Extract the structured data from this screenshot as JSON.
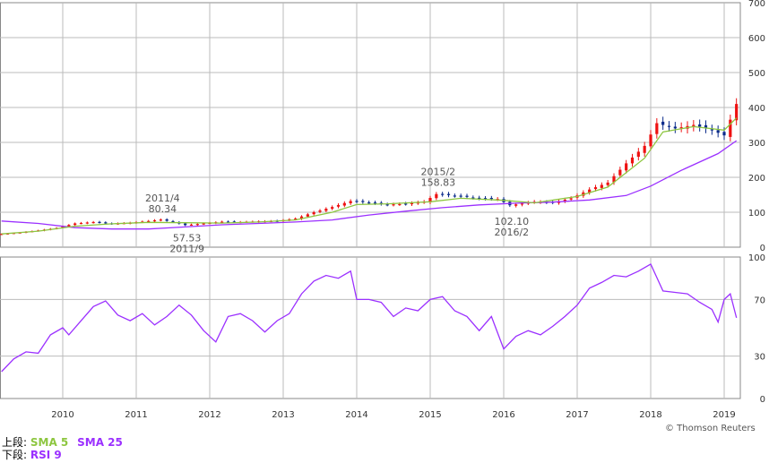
{
  "chart_data": [
    {
      "type": "candlestick",
      "panel": "price",
      "ylim": [
        0,
        700
      ],
      "yticks": [
        "0",
        "100",
        "200",
        "300",
        "400",
        "500",
        "600",
        "700"
      ],
      "x_years": [
        "2010",
        "2011",
        "2012",
        "2013",
        "2014",
        "2015",
        "2016",
        "2017",
        "2018",
        "2019"
      ],
      "close_series": [
        [
          "2009-03",
          38
        ],
        [
          "2009-06",
          42
        ],
        [
          "2009-09",
          48
        ],
        [
          "2009-12",
          55
        ],
        [
          "2010-03",
          68
        ],
        [
          "2010-06",
          72
        ],
        [
          "2010-09",
          67
        ],
        [
          "2010-12",
          70
        ],
        [
          "2011-03",
          75
        ],
        [
          "2011-05",
          79
        ],
        [
          "2011-07",
          72
        ],
        [
          "2011-09",
          63
        ],
        [
          "2011-12",
          68
        ],
        [
          "2012-03",
          73
        ],
        [
          "2012-06",
          72
        ],
        [
          "2012-09",
          74
        ],
        [
          "2012-12",
          75
        ],
        [
          "2013-03",
          82
        ],
        [
          "2013-06",
          100
        ],
        [
          "2013-09",
          115
        ],
        [
          "2013-12",
          132
        ],
        [
          "2014-03",
          128
        ],
        [
          "2014-06",
          122
        ],
        [
          "2014-09",
          124
        ],
        [
          "2014-12",
          130
        ],
        [
          "2015-02",
          152
        ],
        [
          "2015-06",
          146
        ],
        [
          "2015-09",
          140
        ],
        [
          "2015-12",
          138
        ],
        [
          "2016-02",
          120
        ],
        [
          "2016-06",
          130
        ],
        [
          "2016-09",
          128
        ],
        [
          "2016-12",
          140
        ],
        [
          "2017-03",
          165
        ],
        [
          "2017-06",
          185
        ],
        [
          "2017-09",
          240
        ],
        [
          "2017-12",
          290
        ],
        [
          "2018-02",
          355
        ],
        [
          "2018-05",
          340
        ],
        [
          "2018-08",
          350
        ],
        [
          "2018-11",
          335
        ],
        [
          "2019-01",
          320
        ],
        [
          "2019-03",
          410
        ]
      ],
      "sma5": [
        [
          "2009-03",
          38
        ],
        [
          "2009-09",
          46
        ],
        [
          "2010-03",
          60
        ],
        [
          "2010-09",
          67
        ],
        [
          "2011-03",
          71
        ],
        [
          "2011-09",
          70
        ],
        [
          "2012-03",
          69
        ],
        [
          "2012-09",
          72
        ],
        [
          "2013-03",
          78
        ],
        [
          "2013-09",
          100
        ],
        [
          "2014-01",
          122
        ],
        [
          "2014-06",
          124
        ],
        [
          "2015-01",
          130
        ],
        [
          "2015-06",
          140
        ],
        [
          "2016-01",
          134
        ],
        [
          "2016-06",
          127
        ],
        [
          "2017-01",
          145
        ],
        [
          "2017-06",
          172
        ],
        [
          "2017-12",
          255
        ],
        [
          "2018-03",
          330
        ],
        [
          "2018-08",
          345
        ],
        [
          "2019-01",
          335
        ],
        [
          "2019-03",
          370
        ]
      ],
      "sma25": [
        [
          "2009-03",
          75
        ],
        [
          "2009-09",
          68
        ],
        [
          "2010-03",
          56
        ],
        [
          "2010-09",
          52
        ],
        [
          "2011-03",
          52
        ],
        [
          "2011-09",
          58
        ],
        [
          "2012-03",
          64
        ],
        [
          "2012-09",
          68
        ],
        [
          "2013-03",
          72
        ],
        [
          "2013-09",
          78
        ],
        [
          "2014-03",
          92
        ],
        [
          "2014-09",
          103
        ],
        [
          "2015-03",
          113
        ],
        [
          "2015-09",
          121
        ],
        [
          "2016-03",
          126
        ],
        [
          "2016-09",
          129
        ],
        [
          "2017-03",
          135
        ],
        [
          "2017-09",
          148
        ],
        [
          "2018-01",
          175
        ],
        [
          "2018-06",
          220
        ],
        [
          "2018-12",
          268
        ],
        [
          "2019-03",
          305
        ]
      ],
      "annotations": [
        {
          "date": "2011-05",
          "value": 79,
          "lines": [
            "2011/4",
            "80.34"
          ],
          "position": "above"
        },
        {
          "date": "2011-09",
          "value": 63,
          "lines": [
            "57.53",
            "2011/9"
          ],
          "position": "below"
        },
        {
          "date": "2015-02",
          "value": 155,
          "lines": [
            "2015/2",
            "158.83"
          ],
          "position": "above"
        },
        {
          "date": "2016-02",
          "value": 110,
          "lines": [
            "102.10",
            "2016/2"
          ],
          "position": "below"
        }
      ],
      "colors": {
        "up": "#ee1111",
        "down": "#0a2a8a",
        "sma5": "#8dc63f",
        "sma25": "#9b30ff"
      }
    },
    {
      "type": "line",
      "panel": "rsi",
      "ylim": [
        0,
        100
      ],
      "yticks": [
        "0",
        "30",
        "70",
        "100"
      ],
      "series": [
        {
          "values": [
            [
              "2009-03",
              19
            ],
            [
              "2009-05",
              28
            ],
            [
              "2009-07",
              33
            ],
            [
              "2009-09",
              32
            ],
            [
              "2009-11",
              45
            ],
            [
              "2010-01",
              50
            ],
            [
              "2010-02",
              45
            ],
            [
              "2010-04",
              55
            ],
            [
              "2010-06",
              65
            ],
            [
              "2010-08",
              69
            ],
            [
              "2010-10",
              59
            ],
            [
              "2010-12",
              55
            ],
            [
              "2011-02",
              60
            ],
            [
              "2011-04",
              52
            ],
            [
              "2011-06",
              58
            ],
            [
              "2011-08",
              66
            ],
            [
              "2011-10",
              59
            ],
            [
              "2011-12",
              48
            ],
            [
              "2012-02",
              40
            ],
            [
              "2012-04",
              58
            ],
            [
              "2012-06",
              60
            ],
            [
              "2012-08",
              55
            ],
            [
              "2012-10",
              47
            ],
            [
              "2012-12",
              55
            ],
            [
              "2013-02",
              60
            ],
            [
              "2013-04",
              74
            ],
            [
              "2013-06",
              83
            ],
            [
              "2013-08",
              87
            ],
            [
              "2013-10",
              85
            ],
            [
              "2013-12",
              90
            ],
            [
              "2014-01",
              70
            ],
            [
              "2014-03",
              70
            ],
            [
              "2014-05",
              68
            ],
            [
              "2014-07",
              58
            ],
            [
              "2014-09",
              64
            ],
            [
              "2014-11",
              62
            ],
            [
              "2015-01",
              70
            ],
            [
              "2015-03",
              72
            ],
            [
              "2015-05",
              62
            ],
            [
              "2015-07",
              58
            ],
            [
              "2015-09",
              48
            ],
            [
              "2015-11",
              58
            ],
            [
              "2016-01",
              35
            ],
            [
              "2016-03",
              44
            ],
            [
              "2016-05",
              48
            ],
            [
              "2016-07",
              45
            ],
            [
              "2016-09",
              51
            ],
            [
              "2016-11",
              58
            ],
            [
              "2017-01",
              66
            ],
            [
              "2017-03",
              78
            ],
            [
              "2017-05",
              82
            ],
            [
              "2017-07",
              87
            ],
            [
              "2017-09",
              86
            ],
            [
              "2017-11",
              90
            ],
            [
              "2018-01",
              95
            ],
            [
              "2018-03",
              76
            ],
            [
              "2018-05",
              75
            ],
            [
              "2018-07",
              74
            ],
            [
              "2018-09",
              68
            ],
            [
              "2018-11",
              63
            ],
            [
              "2018-12",
              54
            ],
            [
              "2019-01",
              70
            ],
            [
              "2019-02",
              74
            ],
            [
              "2019-03",
              57
            ]
          ]
        }
      ]
    }
  ],
  "legend": {
    "upper_label": "上段:",
    "sma5_label": "SMA 5",
    "sma25_label": "SMA 25",
    "lower_label": "下段:",
    "rsi_label": "RSI 9"
  },
  "copyright": "© Thomson Reuters"
}
